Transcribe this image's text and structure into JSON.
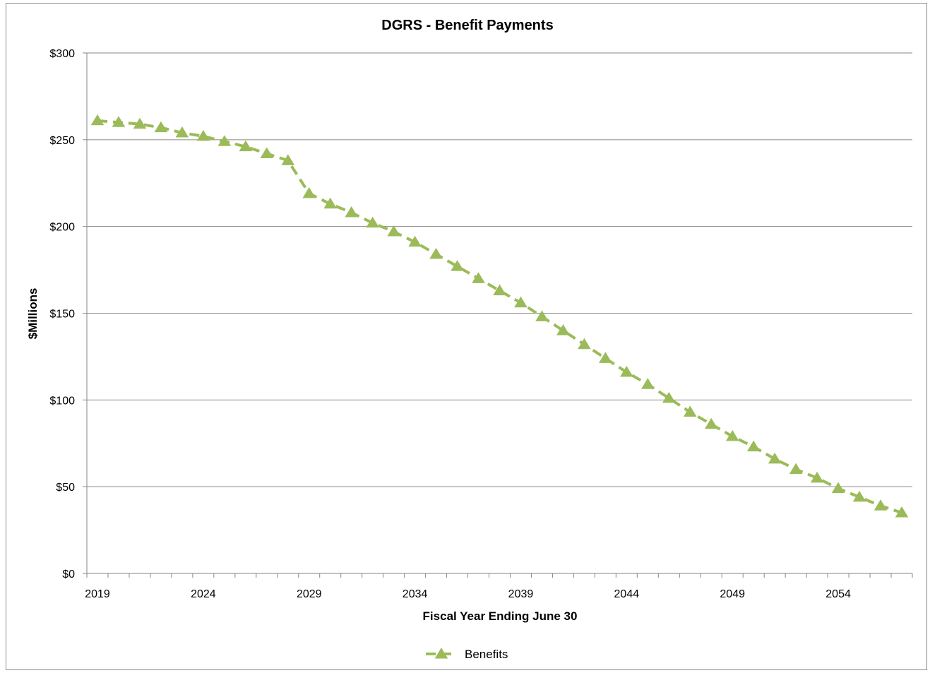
{
  "colors": {
    "series": "#9bbb59",
    "grid": "#868686",
    "axis": "#868686"
  },
  "chart_data": {
    "type": "line",
    "title": "DGRS - Benefit Payments",
    "xlabel": "Fiscal Year Ending June 30",
    "ylabel": "$Millions",
    "ylim": [
      0,
      300
    ],
    "xlim": [
      2019,
      2057
    ],
    "y_ticks": [
      0,
      50,
      100,
      150,
      200,
      250,
      300
    ],
    "y_tick_labels": [
      "$0",
      "$50",
      "$100",
      "$150",
      "$200",
      "$250",
      "$300"
    ],
    "x_ticks": [
      2019,
      2024,
      2029,
      2034,
      2039,
      2044,
      2049,
      2054
    ],
    "x_tick_labels": [
      "2019",
      "2024",
      "2029",
      "2034",
      "2039",
      "2044",
      "2049",
      "2054"
    ],
    "grid": true,
    "legend_position": "bottom",
    "series": [
      {
        "name": "Benefits",
        "line_style": "dashed",
        "marker": "triangle",
        "x": [
          2019,
          2020,
          2021,
          2022,
          2023,
          2024,
          2025,
          2026,
          2027,
          2028,
          2029,
          2030,
          2031,
          2032,
          2033,
          2034,
          2035,
          2036,
          2037,
          2038,
          2039,
          2040,
          2041,
          2042,
          2043,
          2044,
          2045,
          2046,
          2047,
          2048,
          2049,
          2050,
          2051,
          2052,
          2053,
          2054,
          2055,
          2056,
          2057
        ],
        "values": [
          261,
          260,
          259,
          257,
          254,
          252,
          249,
          246,
          242,
          238,
          219,
          213,
          208,
          202,
          197,
          191,
          184,
          177,
          170,
          163,
          156,
          148,
          140,
          132,
          124,
          116,
          109,
          101,
          93,
          86,
          79,
          73,
          66,
          60,
          55,
          49,
          44,
          39,
          35
        ]
      }
    ]
  }
}
